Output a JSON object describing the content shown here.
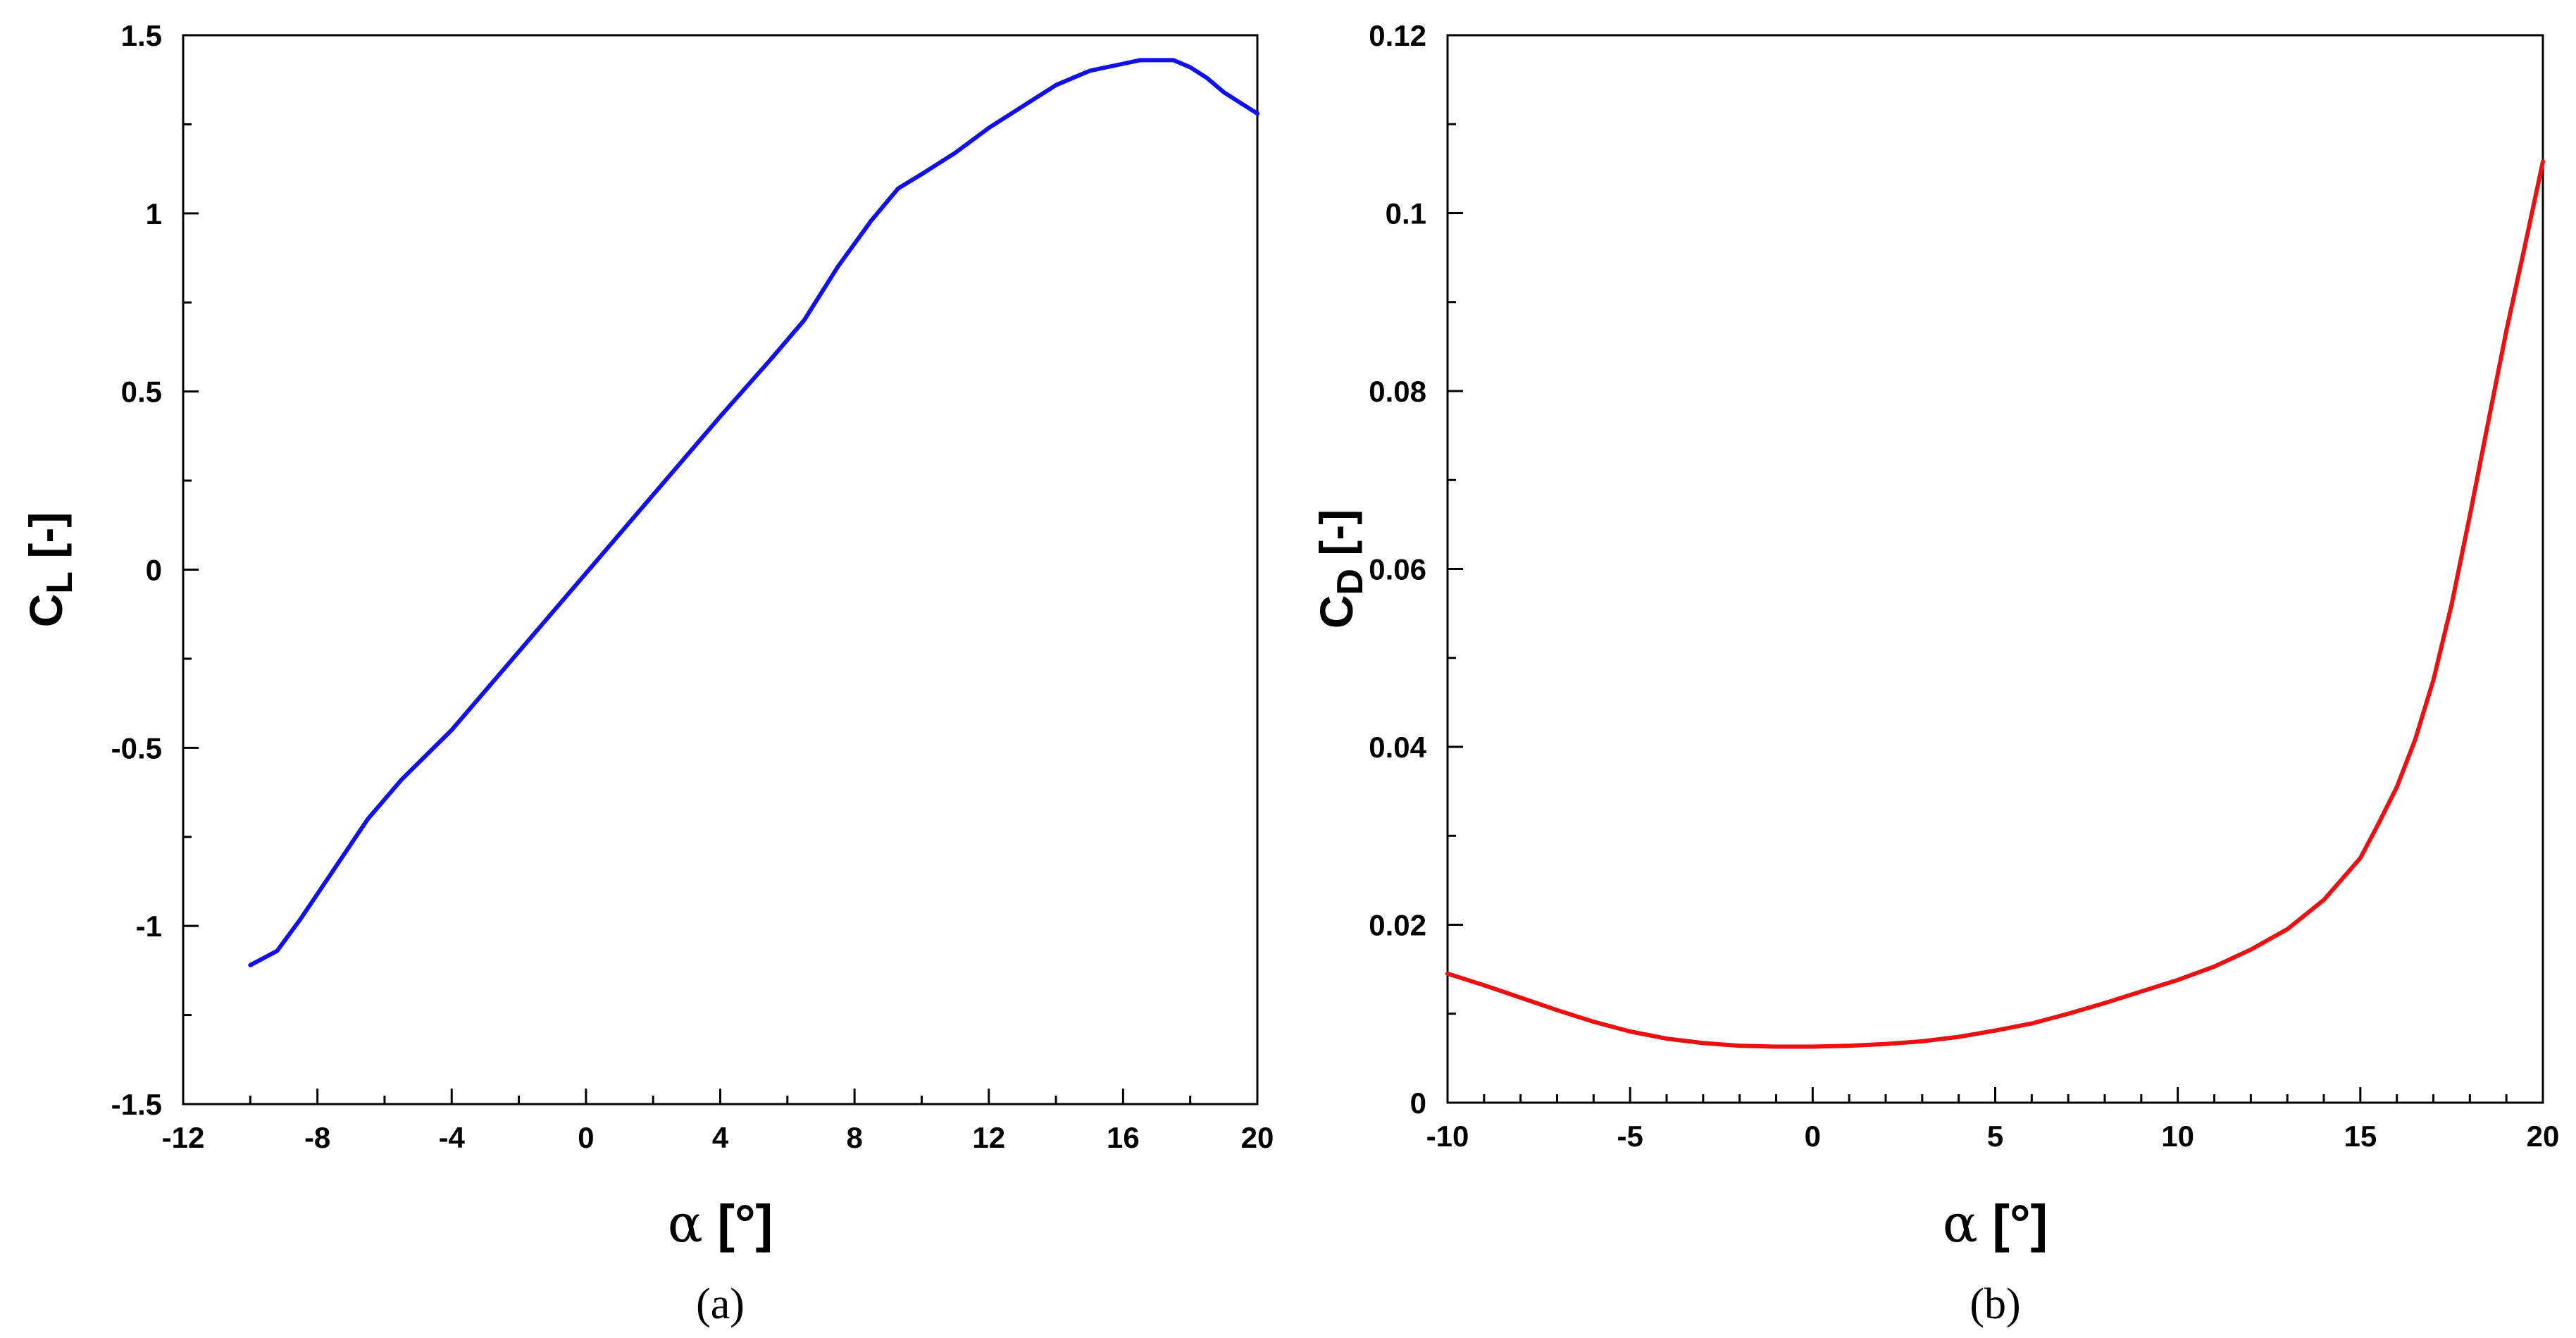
{
  "chart_data": [
    {
      "type": "line",
      "panel_label": "(a)",
      "xlabel": {
        "symbol": "α",
        "unit": " [°]"
      },
      "ylabel": {
        "base": "C",
        "subscript": "L",
        "unit": " [-]"
      },
      "xlim": [
        -12,
        20
      ],
      "ylim": [
        -1.5,
        1.5
      ],
      "xticks": [
        -12,
        -8,
        -4,
        0,
        4,
        8,
        12,
        16,
        20
      ],
      "xtick_labels": [
        "-12",
        "-8",
        "-4",
        "0",
        "4",
        "8",
        "12",
        "16",
        "20"
      ],
      "xminor": [
        -10,
        -6,
        -2,
        2,
        6,
        10,
        14,
        18
      ],
      "yticks": [
        -1.5,
        -1,
        -0.5,
        0,
        0.5,
        1,
        1.5
      ],
      "ytick_labels": [
        "-1.5",
        "-1",
        "-0.5",
        "0",
        "0.5",
        "1",
        "1.5"
      ],
      "yminor": [
        -1.25,
        -0.75,
        -0.25,
        0.25,
        0.75,
        1.25
      ],
      "series": [
        {
          "color": "#1010ee",
          "x": [
            -10,
            -9.2,
            -8.5,
            -7.5,
            -6.5,
            -5.5,
            -4,
            -2,
            0,
            2,
            4,
            5.5,
            6.5,
            7.5,
            8.5,
            9.3,
            10,
            11,
            12,
            13,
            14,
            15,
            15.5,
            16,
            16.5,
            17,
            17.5,
            18,
            18.5,
            19,
            19.5,
            20
          ],
          "y": [
            -1.11,
            -1.07,
            -0.98,
            -0.84,
            -0.7,
            -0.59,
            -0.45,
            -0.23,
            -0.01,
            0.21,
            0.43,
            0.59,
            0.7,
            0.85,
            0.98,
            1.07,
            1.11,
            1.17,
            1.24,
            1.3,
            1.36,
            1.4,
            1.41,
            1.42,
            1.43,
            1.43,
            1.43,
            1.41,
            1.38,
            1.34,
            1.31,
            1.28
          ]
        }
      ]
    },
    {
      "type": "line",
      "panel_label": "(b)",
      "xlabel": {
        "symbol": "α",
        "unit": " [°]"
      },
      "ylabel": {
        "base": "C",
        "subscript": "D",
        "unit": " [-]"
      },
      "xlim": [
        -10,
        20
      ],
      "ylim": [
        0,
        0.12
      ],
      "xticks": [
        -10,
        -5,
        0,
        5,
        10,
        15,
        20
      ],
      "xtick_labels": [
        "-10",
        "-5",
        "0",
        "5",
        "10",
        "15",
        "20"
      ],
      "xminor": [
        -9,
        -8,
        -7,
        -6,
        -4,
        -3,
        -2,
        -1,
        1,
        2,
        3,
        4,
        6,
        7,
        8,
        9,
        11,
        12,
        13,
        14,
        16,
        17,
        18,
        19
      ],
      "yticks": [
        0,
        0.02,
        0.04,
        0.06,
        0.08,
        0.1,
        0.12
      ],
      "ytick_labels": [
        "0",
        "0.02",
        "0.04",
        "0.06",
        "0.08",
        "0.1",
        "0.12"
      ],
      "yminor": [
        0.01,
        0.03,
        0.05,
        0.07,
        0.09,
        0.11
      ],
      "series": [
        {
          "color": "#ee1010",
          "x": [
            -10,
            -9,
            -8,
            -7,
            -6,
            -5,
            -4,
            -3,
            -2,
            -1,
            0,
            1,
            2,
            3,
            4,
            5,
            6,
            7,
            8,
            9,
            10,
            11,
            12,
            13,
            14,
            15,
            15.5,
            16,
            16.5,
            17,
            17.5,
            18,
            18.5,
            19,
            19.5,
            20
          ],
          "y": [
            0.0145,
            0.0132,
            0.0118,
            0.0104,
            0.0091,
            0.008,
            0.0072,
            0.0067,
            0.0064,
            0.0063,
            0.0063,
            0.0064,
            0.0066,
            0.0069,
            0.0074,
            0.0081,
            0.0089,
            0.01,
            0.0112,
            0.0125,
            0.0138,
            0.0153,
            0.0172,
            0.0195,
            0.0228,
            0.0275,
            0.0314,
            0.0355,
            0.0408,
            0.0475,
            0.056,
            0.066,
            0.0765,
            0.0868,
            0.0962,
            0.1058
          ]
        }
      ]
    }
  ]
}
